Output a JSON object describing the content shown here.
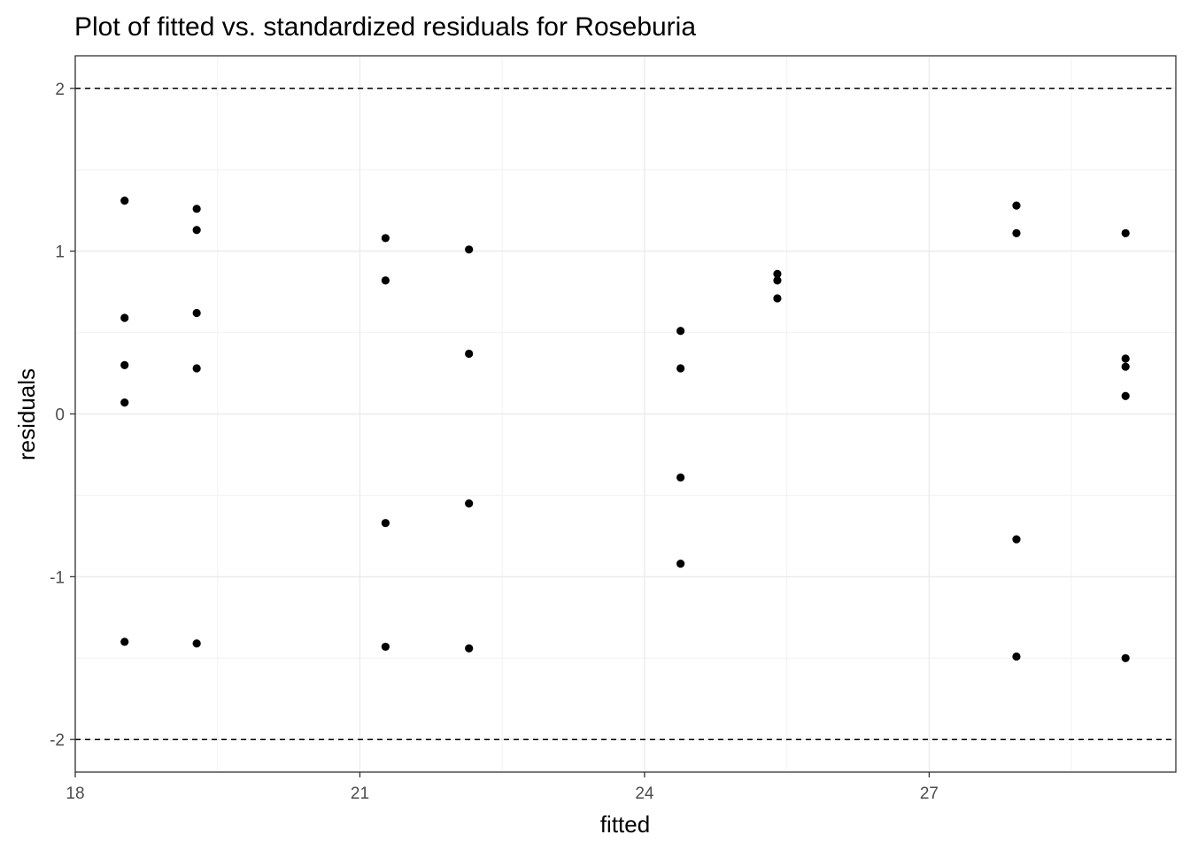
{
  "chart_data": {
    "type": "scatter",
    "title": "Plot of fitted vs. standardized residuals for Roseburia",
    "xlabel": "fitted",
    "ylabel": "residuals",
    "xlim": [
      18,
      29.6
    ],
    "ylim": [
      -2.2,
      2.2
    ],
    "x_ticks": [
      18,
      21,
      24,
      27
    ],
    "y_ticks": [
      -2,
      -1,
      0,
      1,
      2
    ],
    "reference_lines": [
      {
        "axis": "y",
        "value": 2,
        "style": "dashed"
      },
      {
        "axis": "y",
        "value": -2,
        "style": "dashed"
      }
    ],
    "grid": true,
    "point_color": "#000000",
    "points": [
      {
        "x": 18.52,
        "y": 1.31
      },
      {
        "x": 18.52,
        "y": 0.59
      },
      {
        "x": 18.52,
        "y": 0.3
      },
      {
        "x": 18.52,
        "y": 0.07
      },
      {
        "x": 18.52,
        "y": -1.4
      },
      {
        "x": 19.28,
        "y": 1.26
      },
      {
        "x": 19.28,
        "y": 1.13
      },
      {
        "x": 19.28,
        "y": 0.62
      },
      {
        "x": 19.28,
        "y": 0.28
      },
      {
        "x": 19.28,
        "y": -1.41
      },
      {
        "x": 21.27,
        "y": 1.08
      },
      {
        "x": 21.27,
        "y": 0.82
      },
      {
        "x": 21.27,
        "y": -0.67
      },
      {
        "x": 21.27,
        "y": -1.43
      },
      {
        "x": 22.15,
        "y": 1.01
      },
      {
        "x": 22.15,
        "y": 0.37
      },
      {
        "x": 22.15,
        "y": -0.55
      },
      {
        "x": 22.15,
        "y": -1.44
      },
      {
        "x": 24.38,
        "y": 0.51
      },
      {
        "x": 24.38,
        "y": 0.28
      },
      {
        "x": 24.38,
        "y": -0.39
      },
      {
        "x": 24.38,
        "y": -0.92
      },
      {
        "x": 25.4,
        "y": 0.86
      },
      {
        "x": 25.4,
        "y": 0.82
      },
      {
        "x": 25.4,
        "y": 0.71
      },
      {
        "x": 27.92,
        "y": 1.28
      },
      {
        "x": 27.92,
        "y": 1.11
      },
      {
        "x": 27.92,
        "y": -0.77
      },
      {
        "x": 27.92,
        "y": -1.49
      },
      {
        "x": 29.07,
        "y": 1.11
      },
      {
        "x": 29.07,
        "y": 0.34
      },
      {
        "x": 29.07,
        "y": 0.29
      },
      {
        "x": 29.07,
        "y": 0.11
      },
      {
        "x": 29.07,
        "y": -1.5
      }
    ]
  }
}
